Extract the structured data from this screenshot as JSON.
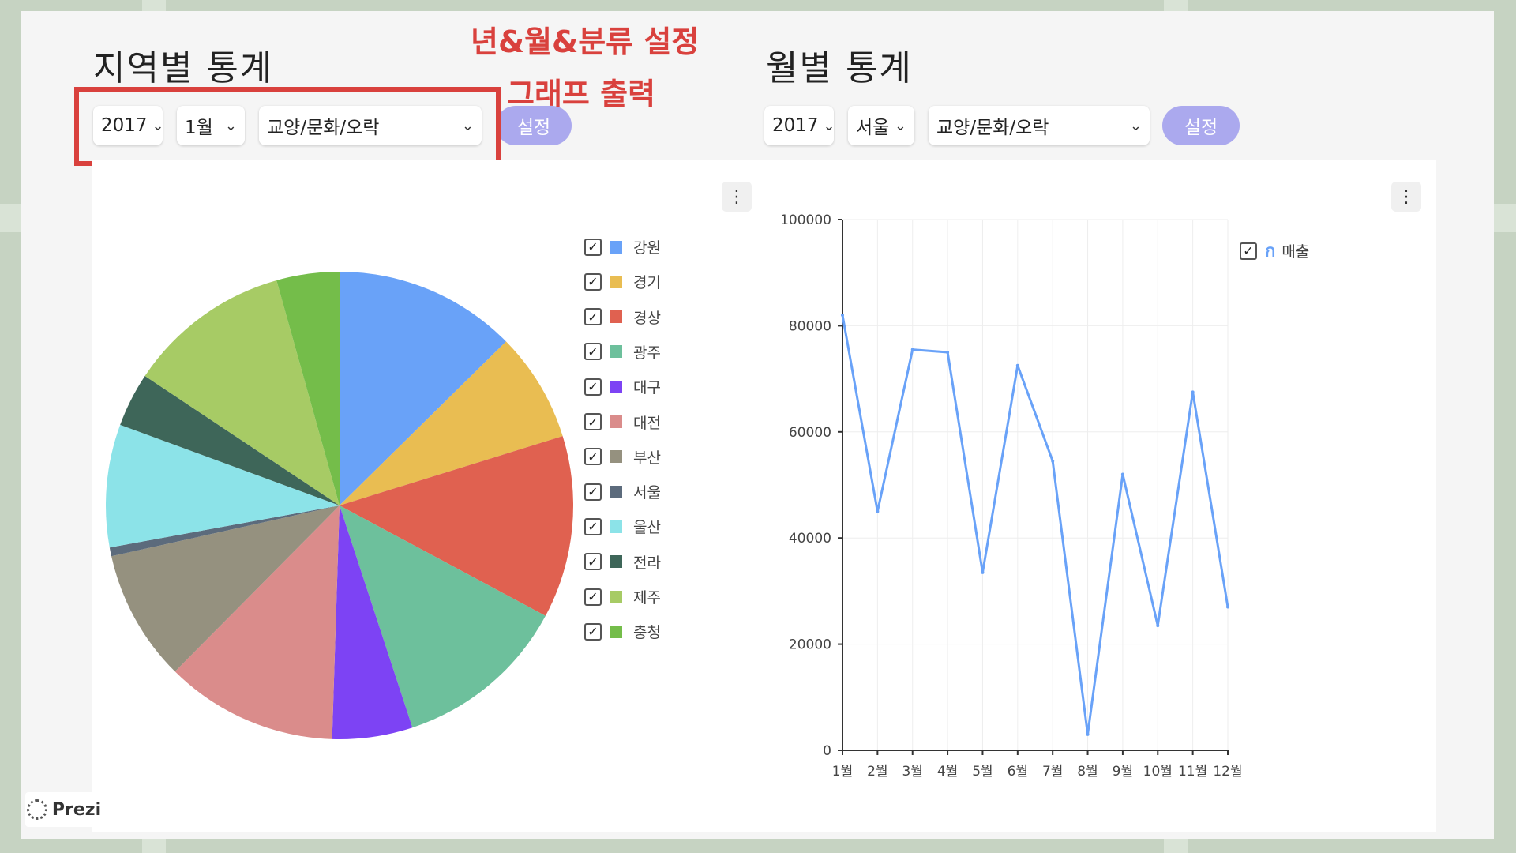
{
  "regional": {
    "title": "지역별 통계",
    "year": "2017",
    "month": "1월",
    "category": "교양/문화/오락",
    "button": "설정"
  },
  "monthly": {
    "title": "월별 통계",
    "year": "2017",
    "region": "서울",
    "category": "교양/문화/오락",
    "button": "설정"
  },
  "annotation": {
    "line1": "년&월&분류 설정",
    "line2": "그래프 출력",
    "color": "#d9413d"
  },
  "branding": {
    "label": "Prezi"
  },
  "chart_data": [
    {
      "type": "pie",
      "categories": [
        "강원",
        "경기",
        "경상",
        "광주",
        "대구",
        "대전",
        "부산",
        "서울",
        "울산",
        "전라",
        "제주",
        "충청"
      ],
      "values": [
        12.5,
        7.5,
        12.5,
        12,
        5.5,
        11.8,
        9,
        0.6,
        8.4,
        3.7,
        11.2,
        4.3
      ],
      "colors": [
        "#69a2f8",
        "#e9bd52",
        "#e06150",
        "#6dc09c",
        "#7d43f4",
        "#da8c8b",
        "#95917f",
        "#5c6b7c",
        "#8ce3e8",
        "#3e6659",
        "#a7cb65",
        "#74bd4a"
      ],
      "legend": "right"
    },
    {
      "type": "line",
      "categories": [
        "1월",
        "2월",
        "3월",
        "4월",
        "5월",
        "6월",
        "7월",
        "8월",
        "9월",
        "10월",
        "11월",
        "12월"
      ],
      "series": [
        {
          "name": "매출",
          "values": [
            82000,
            45000,
            75500,
            75000,
            33500,
            72500,
            54500,
            3000,
            52000,
            23500,
            67500,
            27000
          ],
          "color": "#69a2f8"
        }
      ],
      "ylim": [
        0,
        100000
      ],
      "yticks": [
        0,
        20000,
        40000,
        60000,
        80000,
        100000
      ],
      "grid": true,
      "legend": "top-right"
    }
  ]
}
